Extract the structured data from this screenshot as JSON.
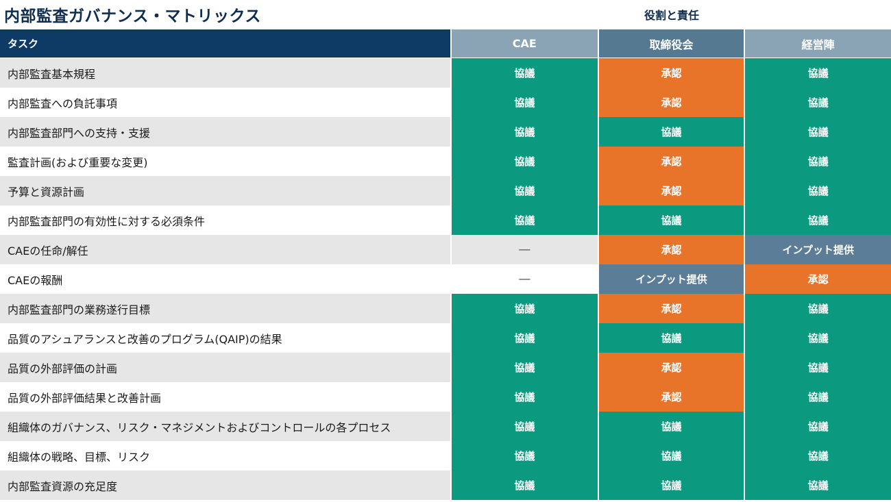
{
  "title": "内部監査ガバナンス・マトリックス",
  "roles_caption": "役割と責任",
  "header": {
    "task": "タスク",
    "roles": [
      "CAE",
      "取締役会",
      "経営陣"
    ]
  },
  "legend_colors": {
    "協議": "#0b9a7f",
    "承認": "#e8742a",
    "インプット提供": "#5b7d97",
    "—": "none"
  },
  "rows": [
    {
      "task": "内部監査基本規程",
      "cae": "協議",
      "board": "承認",
      "management": "協議"
    },
    {
      "task": "内部監査への負託事項",
      "cae": "協議",
      "board": "承認",
      "management": "協議"
    },
    {
      "task": "内部監査部門への支持・支援",
      "cae": "協議",
      "board": "協議",
      "management": "協議"
    },
    {
      "task": "監査計画(および重要な変更)",
      "cae": "協議",
      "board": "承認",
      "management": "協議"
    },
    {
      "task": "予算と資源計画",
      "cae": "協議",
      "board": "承認",
      "management": "協議"
    },
    {
      "task": "内部監査部門の有効性に対する必須条件",
      "cae": "協議",
      "board": "協議",
      "management": "協議"
    },
    {
      "task": "CAEの任命/解任",
      "cae": "—",
      "board": "承認",
      "management": "インプット提供"
    },
    {
      "task": "CAEの報酬",
      "cae": "—",
      "board": "インプット提供",
      "management": "承認"
    },
    {
      "task": "内部監査部門の業務遂行目標",
      "cae": "協議",
      "board": "承認",
      "management": "協議"
    },
    {
      "task": "品質のアシュアランスと改善のプログラム(QAIP)の結果",
      "cae": "協議",
      "board": "協議",
      "management": "協議"
    },
    {
      "task": "品質の外部評価の計画",
      "cae": "協議",
      "board": "承認",
      "management": "協議"
    },
    {
      "task": "品質の外部評価結果と改善計画",
      "cae": "協議",
      "board": "承認",
      "management": "協議"
    },
    {
      "task": "組織体のガバナンス、リスク・マネジメントおよびコントロールの各プロセス",
      "cae": "協議",
      "board": "協議",
      "management": "協議"
    },
    {
      "task": "組織体の戦略、目標、リスク",
      "cae": "協議",
      "board": "協議",
      "management": "協議"
    },
    {
      "task": "内部監査資源の充足度",
      "cae": "協議",
      "board": "協議",
      "management": "協議"
    }
  ]
}
